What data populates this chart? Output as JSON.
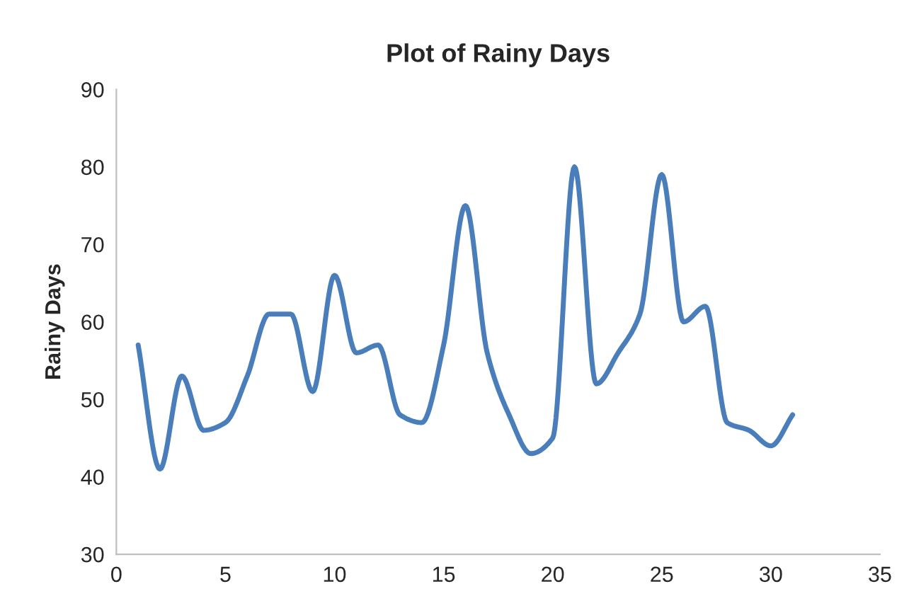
{
  "chart_data": {
    "type": "line",
    "title": "Plot of Rainy Days",
    "ylabel": "Rainy Days",
    "x": [
      1,
      2,
      3,
      4,
      5,
      6,
      7,
      8,
      9,
      10,
      11,
      12,
      13,
      14,
      15,
      16,
      17,
      18,
      19,
      20,
      21,
      22,
      23,
      24,
      25,
      26,
      27,
      28,
      29,
      30,
      31
    ],
    "series": [
      {
        "color": "#4a7ebb",
        "values": [
          57,
          41,
          53,
          46,
          47,
          53,
          61,
          61,
          51,
          66,
          56,
          57,
          48,
          47,
          57,
          75,
          56,
          48,
          43,
          45,
          80,
          52,
          56,
          61,
          79,
          60,
          62,
          47,
          46,
          44,
          48
        ]
      }
    ],
    "xlim": [
      0,
      35
    ],
    "xticks": [
      0,
      5,
      10,
      15,
      20,
      25,
      30,
      35
    ],
    "ylim": [
      30,
      90
    ],
    "yticks": [
      30,
      40,
      50,
      60,
      70,
      80,
      90
    ],
    "grid": false,
    "legend": false,
    "marker": "none",
    "line_style": "solid"
  }
}
